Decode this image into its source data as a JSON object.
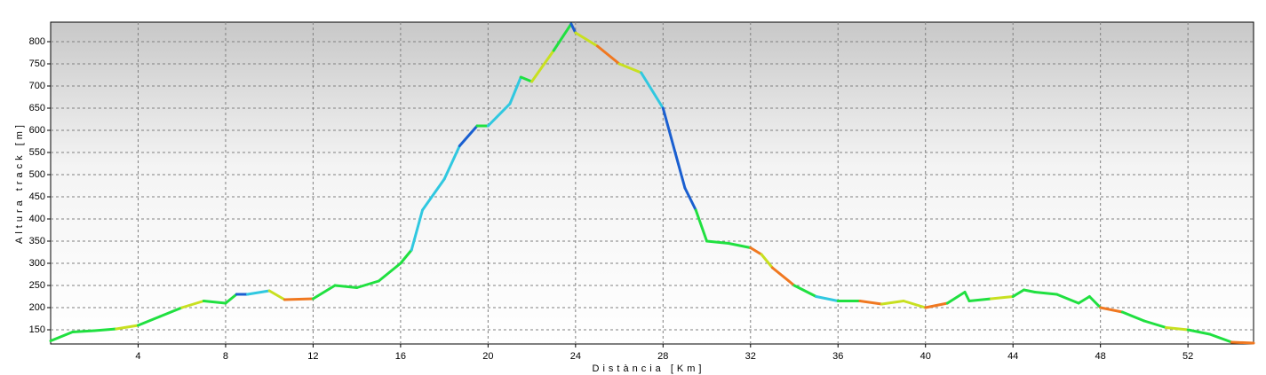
{
  "chart_data": {
    "type": "line",
    "xlabel": "Distància [Km]",
    "ylabel": "Altura track [m]",
    "xlim": [
      0,
      55
    ],
    "ylim": [
      118,
      844
    ],
    "xticks": [
      4,
      8,
      12,
      16,
      20,
      24,
      28,
      32,
      36,
      40,
      44,
      48,
      52
    ],
    "yticks": [
      150,
      200,
      250,
      300,
      350,
      400,
      450,
      500,
      550,
      600,
      650,
      700,
      750,
      800
    ],
    "grid": true,
    "x": [
      0,
      1,
      2,
      3,
      4,
      5,
      6,
      7,
      8,
      8.5,
      9,
      10,
      10.7,
      12,
      13,
      14,
      15,
      16,
      16.5,
      17,
      18,
      18.7,
      19.5,
      20,
      21,
      21.5,
      22,
      23,
      23.8,
      24,
      25,
      26,
      27,
      28,
      29,
      29.5,
      30,
      31,
      32,
      32.5,
      33,
      34,
      35,
      36,
      37,
      38,
      39,
      40,
      41,
      41.8,
      42,
      43,
      44,
      44.5,
      45,
      46,
      47,
      47.5,
      48,
      49,
      50,
      51,
      52,
      53,
      54,
      55
    ],
    "series": [
      {
        "values": [
          125,
          145,
          148,
          152,
          160,
          180,
          200,
          215,
          210,
          230,
          230,
          238,
          218,
          220,
          250,
          245,
          260,
          300,
          330,
          420,
          490,
          565,
          610,
          610,
          660,
          720,
          710,
          780,
          840,
          820,
          790,
          750,
          730,
          650,
          470,
          420,
          350,
          345,
          335,
          320,
          290,
          250,
          225,
          215,
          215,
          208,
          215,
          200,
          210,
          235,
          215,
          220,
          225,
          240,
          235,
          230,
          210,
          225,
          200,
          190,
          170,
          155,
          150,
          140,
          122,
          120
        ],
        "colors": [
          "#20e040",
          "#20e040",
          "#20e040",
          "#c8e020",
          "#20e040",
          "#20e040",
          "#c8e020",
          "#20e040",
          "#20e040",
          "#1a5fd0",
          "#30c8e0",
          "#c8e020",
          "#f07820",
          "#20e040",
          "#20e040",
          "#20e040",
          "#20e040",
          "#20e040",
          "#30c8e0",
          "#30c8e0",
          "#30c8e0",
          "#1a5fd0",
          "#20e040",
          "#30c8e0",
          "#30c8e0",
          "#20e040",
          "#c8e020",
          "#20e040",
          "#1a5fd0",
          "#c8e020",
          "#f07820",
          "#c8e020",
          "#30c8e0",
          "#1a5fd0",
          "#1a5fd0",
          "#20e040",
          "#20e040",
          "#20e040",
          "#f07820",
          "#c8e020",
          "#f07820",
          "#20e040",
          "#30c8e0",
          "#20e040",
          "#f07820",
          "#c8e020",
          "#c8e020",
          "#f07820",
          "#20e040",
          "#20e040",
          "#20e040",
          "#c8e020",
          "#20e040",
          "#20e040",
          "#20e040",
          "#20e040",
          "#20e040",
          "#20e040",
          "#f07820",
          "#20e040",
          "#20e040",
          "#c8e020",
          "#20e040",
          "#20e040",
          "#f07820",
          "#20e040"
        ]
      }
    ]
  }
}
